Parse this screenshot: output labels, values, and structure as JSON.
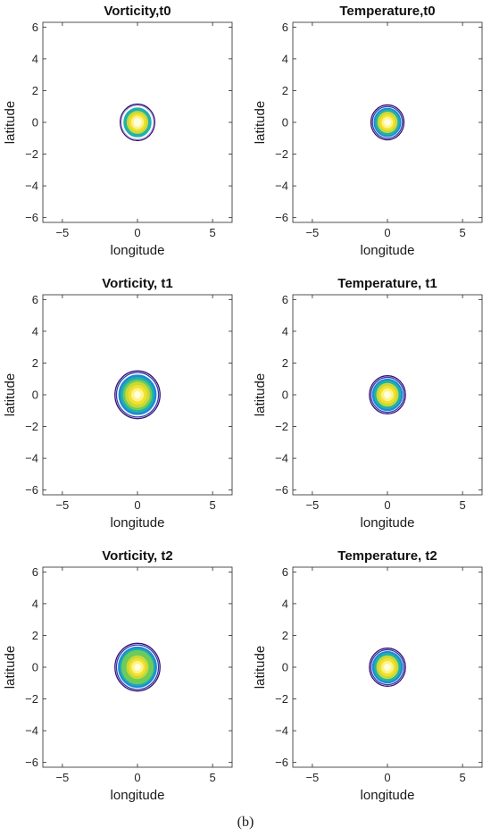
{
  "figure": {
    "caption": "(b)"
  },
  "chart_data": [
    {
      "type": "contour",
      "title": "Vorticity,t0",
      "xlabel": "longitude",
      "ylabel": "latitude",
      "xlim": [
        -6.3,
        6.3
      ],
      "ylim": [
        -6.3,
        6.3
      ],
      "xticks": [
        "-5",
        "0",
        "5"
      ],
      "yticks": [
        "6",
        "4",
        "2",
        "0",
        "-2",
        "-4",
        "-6"
      ],
      "field": "vorticity",
      "time": "t0",
      "center": [
        0,
        0
      ],
      "contour_radii": [
        1.15,
        1.05,
        0.98,
        0.9,
        0.7,
        0.55,
        0.4,
        0.25
      ]
    },
    {
      "type": "contour",
      "title": "Temperature,t0",
      "xlabel": "longitude",
      "ylabel": "",
      "xlim": [
        -6.3,
        6.3
      ],
      "ylim": [
        -6.3,
        6.3
      ],
      "xticks": [
        "-5",
        "0",
        "5"
      ],
      "yticks": [
        "6",
        "4",
        "2",
        "0",
        "-2",
        "-4",
        "-6"
      ],
      "field": "temperature",
      "time": "t0",
      "center": [
        0,
        0
      ],
      "contour_radii": [
        1.1,
        1.0,
        0.9,
        0.8,
        0.65,
        0.5,
        0.35,
        0.2
      ]
    },
    {
      "type": "contour",
      "title": "Vorticity, t1",
      "xlabel": "longitude",
      "ylabel": "latitude",
      "xlim": [
        -6.3,
        6.3
      ],
      "ylim": [
        -6.3,
        6.3
      ],
      "xticks": [
        "-5",
        "0",
        "5"
      ],
      "yticks": [
        "6",
        "4",
        "2",
        "0",
        "-2",
        "-4",
        "-6"
      ],
      "field": "vorticity",
      "time": "t1",
      "center": [
        0,
        0
      ],
      "contour_radii": [
        1.5,
        1.4,
        1.25,
        1.1,
        0.95,
        0.8,
        0.6,
        0.4,
        0.2
      ]
    },
    {
      "type": "contour",
      "title": "Temperature, t1",
      "xlabel": "longitude",
      "ylabel": "",
      "xlim": [
        -6.3,
        6.3
      ],
      "ylim": [
        -6.3,
        6.3
      ],
      "xticks": [
        "-5",
        "0",
        "5"
      ],
      "yticks": [
        "6",
        "4",
        "2",
        "0",
        "-2",
        "-4",
        "-6"
      ],
      "field": "temperature",
      "time": "t1",
      "center": [
        0,
        0
      ],
      "contour_radii": [
        1.2,
        1.1,
        1.0,
        0.88,
        0.72,
        0.55,
        0.38,
        0.2
      ]
    },
    {
      "type": "contour",
      "title": "Vorticity, t2",
      "xlabel": "longitude",
      "ylabel": "latitude",
      "xlim": [
        -6.3,
        6.3
      ],
      "ylim": [
        -6.3,
        6.3
      ],
      "xticks": [
        "-5",
        "0",
        "5"
      ],
      "yticks": [
        "6",
        "4",
        "2",
        "0",
        "-2",
        "-4",
        "-6"
      ],
      "field": "vorticity",
      "time": "t2",
      "center": [
        0,
        0
      ],
      "contour_radii": [
        1.5,
        1.4,
        1.28,
        1.15,
        1.05,
        0.9,
        0.72,
        0.55,
        0.38,
        0.2
      ]
    },
    {
      "type": "contour",
      "title": "Temperature, t2",
      "xlabel": "longitude",
      "ylabel": "",
      "xlim": [
        -6.3,
        6.3
      ],
      "ylim": [
        -6.3,
        6.3
      ],
      "xticks": [
        "-5",
        "0",
        "5"
      ],
      "yticks": [
        "6",
        "4",
        "2",
        "0",
        "-2",
        "-4",
        "-6"
      ],
      "field": "temperature",
      "time": "t2",
      "center": [
        0,
        0
      ],
      "contour_radii": [
        1.2,
        1.1,
        1.0,
        0.88,
        0.72,
        0.55,
        0.38,
        0.2
      ]
    }
  ],
  "colors": {
    "levels": [
      "#3b0f70",
      "#2c3fb0",
      "#1f8ad8",
      "#1fb3a8",
      "#6ccb5a",
      "#c8d83a",
      "#f1e12c",
      "#fff38a",
      "#ffffe0"
    ]
  }
}
